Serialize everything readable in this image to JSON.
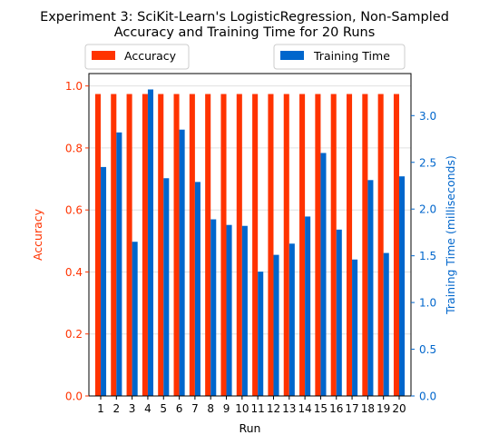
{
  "chart_data": {
    "type": "bar",
    "title": "Experiment 3: SciKit-Learn's LogisticRegression, Non-Sampled\nAccuracy and Training Time for 20 Runs",
    "xlabel": "Run",
    "ylabel_left": "Accuracy",
    "ylabel_right": "Training Time (milliseconds)",
    "categories": [
      "1",
      "2",
      "3",
      "4",
      "5",
      "6",
      "7",
      "8",
      "9",
      "10",
      "11",
      "12",
      "13",
      "14",
      "15",
      "16",
      "17",
      "18",
      "19",
      "20"
    ],
    "ylim_left": [
      0,
      1.04
    ],
    "ylim_right": [
      0,
      3.45
    ],
    "yticks_left": [
      "0.0",
      "0.2",
      "0.4",
      "0.6",
      "0.8",
      "1.0"
    ],
    "yticks_right": [
      "0.0",
      "0.5",
      "1.0",
      "1.5",
      "2.0",
      "2.5",
      "3.0"
    ],
    "grid": "horizontal",
    "series": [
      {
        "name": "Accuracy",
        "axis": "left",
        "color": "#ff3300",
        "values": [
          0.974,
          0.974,
          0.974,
          0.974,
          0.974,
          0.974,
          0.974,
          0.974,
          0.974,
          0.974,
          0.974,
          0.974,
          0.974,
          0.974,
          0.974,
          0.974,
          0.974,
          0.974,
          0.974,
          0.974
        ]
      },
      {
        "name": "Training Time",
        "axis": "right",
        "color": "#0066cc",
        "values": [
          2.45,
          2.82,
          1.65,
          3.28,
          2.33,
          2.85,
          2.29,
          1.89,
          1.83,
          1.82,
          1.33,
          1.51,
          1.63,
          1.92,
          2.6,
          1.78,
          1.46,
          2.31,
          1.53,
          2.35
        ]
      }
    ],
    "legend": [
      {
        "label": "Accuracy",
        "placement": "top-left"
      },
      {
        "label": "Training Time",
        "placement": "top-right"
      }
    ]
  }
}
